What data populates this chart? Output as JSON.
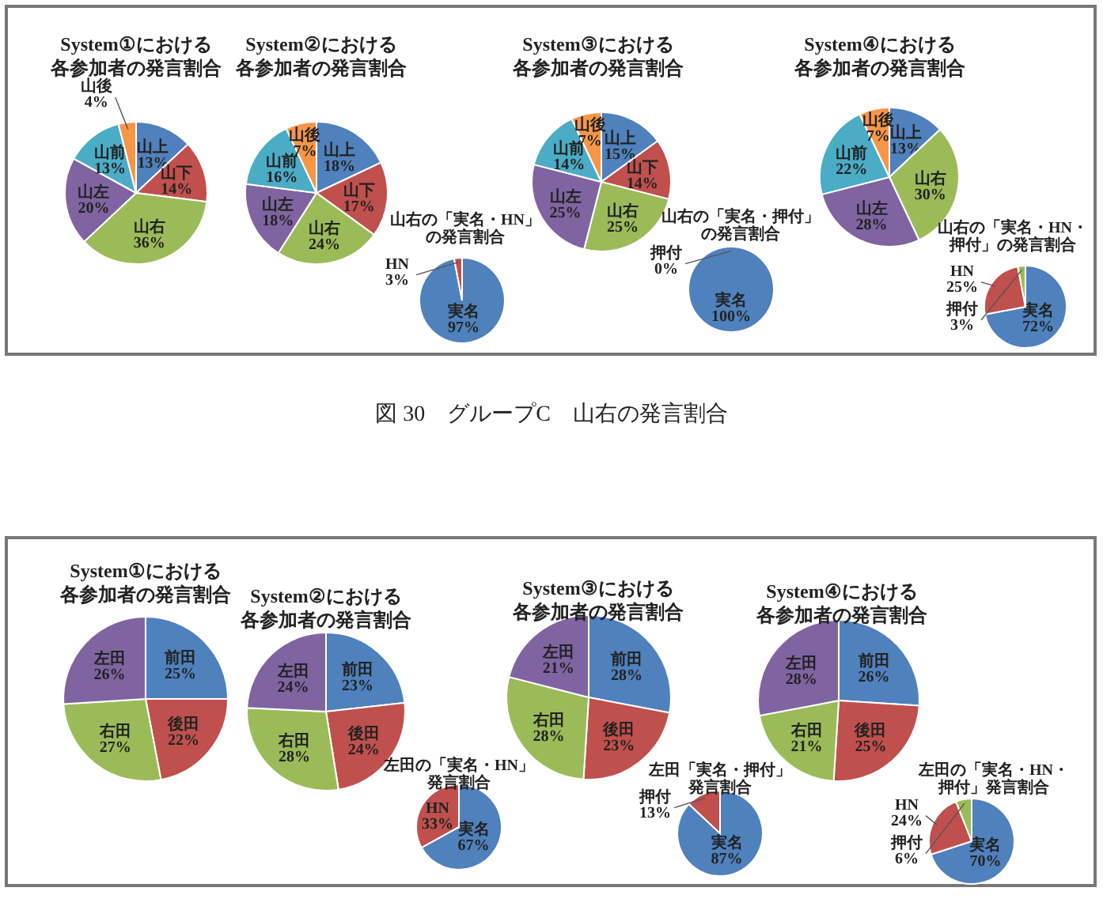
{
  "chart_data": [
    {
      "type": "pie",
      "title": "System①における各参加者の発言割合",
      "categories": [
        "山上",
        "山下",
        "山右",
        "山左",
        "山前",
        "山後"
      ],
      "values": [
        13,
        14,
        36,
        20,
        13,
        4
      ],
      "value_labels": [
        "13%",
        "14%",
        "36%",
        "20%",
        "13%",
        "4%"
      ],
      "colors": [
        "#4f81bd",
        "#c0504d",
        "#9bbb59",
        "#8064a2",
        "#4bacc6",
        "#f79646"
      ],
      "annotations": [
        "図 30　グループC　山右の発言割合"
      ]
    },
    {
      "type": "pie",
      "title": "System②における各参加者の発言割合",
      "categories": [
        "山上",
        "山下",
        "山右",
        "山左",
        "山前",
        "山後"
      ],
      "values": [
        18,
        17,
        24,
        18,
        16,
        7
      ],
      "value_labels": [
        "18%",
        "17%",
        "24%",
        "18%",
        "16%",
        "7%"
      ],
      "colors": [
        "#4f81bd",
        "#c0504d",
        "#9bbb59",
        "#8064a2",
        "#4bacc6",
        "#f79646"
      ]
    },
    {
      "type": "pie",
      "title": "山右の「実名・HN」の発言割合",
      "categories": [
        "実名",
        "HN"
      ],
      "values": [
        97,
        3
      ],
      "value_labels": [
        "97%",
        "3%"
      ],
      "colors": [
        "#4f81bd",
        "#c0504d"
      ]
    },
    {
      "type": "pie",
      "title": "System③における各参加者の発言割合",
      "categories": [
        "山上",
        "山下",
        "山右",
        "山左",
        "山前",
        "山後"
      ],
      "values": [
        15,
        14,
        25,
        25,
        14,
        7
      ],
      "value_labels": [
        "15%",
        "14%",
        "25%",
        "25%",
        "14%",
        "7%"
      ],
      "colors": [
        "#4f81bd",
        "#c0504d",
        "#9bbb59",
        "#8064a2",
        "#4bacc6",
        "#f79646"
      ]
    },
    {
      "type": "pie",
      "title": "山右の「実名・押付」の発言割合",
      "categories": [
        "実名",
        "押付"
      ],
      "values": [
        100,
        0
      ],
      "value_labels": [
        "100%",
        "0%"
      ],
      "colors": [
        "#4f81bd",
        "#c0504d"
      ]
    },
    {
      "type": "pie",
      "title": "System④における各参加者の発言割合",
      "categories": [
        "山上",
        "山右",
        "山左",
        "山前",
        "山後"
      ],
      "values": [
        13,
        30,
        28,
        22,
        7
      ],
      "value_labels": [
        "13%",
        "30%",
        "28%",
        "22%",
        "7%"
      ],
      "colors": [
        "#4f81bd",
        "#9bbb59",
        "#8064a2",
        "#4bacc6",
        "#f79646"
      ]
    },
    {
      "type": "pie",
      "title": "山右の「実名・HN・押付」の発言割合",
      "categories": [
        "実名",
        "HN",
        "押付"
      ],
      "values": [
        72,
        25,
        3
      ],
      "value_labels": [
        "72%",
        "25%",
        "3%"
      ],
      "colors": [
        "#4f81bd",
        "#c0504d",
        "#9bbb59"
      ]
    },
    {
      "type": "pie",
      "title": "System①における各参加者の発言割合",
      "categories": [
        "前田",
        "後田",
        "右田",
        "左田"
      ],
      "values": [
        25,
        22,
        27,
        26
      ],
      "value_labels": [
        "25%",
        "22%",
        "27%",
        "26%"
      ],
      "colors": [
        "#4f81bd",
        "#c0504d",
        "#9bbb59",
        "#8064a2"
      ]
    },
    {
      "type": "pie",
      "title": "System②における各参加者の発言割合",
      "categories": [
        "前田",
        "後田",
        "右田",
        "左田"
      ],
      "values": [
        23,
        24,
        28,
        24
      ],
      "value_labels": [
        "23%",
        "24%",
        "28%",
        "24%"
      ],
      "colors": [
        "#4f81bd",
        "#c0504d",
        "#9bbb59",
        "#8064a2"
      ]
    },
    {
      "type": "pie",
      "title": "左田の「実名・HN」発言割合",
      "categories": [
        "実名",
        "HN"
      ],
      "values": [
        67,
        33
      ],
      "value_labels": [
        "67%",
        "33%"
      ],
      "colors": [
        "#4f81bd",
        "#c0504d"
      ]
    },
    {
      "type": "pie",
      "title": "System③における各参加者の発言割合",
      "categories": [
        "前田",
        "後田",
        "右田",
        "左田"
      ],
      "values": [
        28,
        23,
        28,
        21
      ],
      "value_labels": [
        "28%",
        "23%",
        "28%",
        "21%"
      ],
      "colors": [
        "#4f81bd",
        "#c0504d",
        "#9bbb59",
        "#8064a2"
      ]
    },
    {
      "type": "pie",
      "title": "左田「実名・押付」発言割合",
      "categories": [
        "実名",
        "押付"
      ],
      "values": [
        87,
        13
      ],
      "value_labels": [
        "87%",
        "13%"
      ],
      "colors": [
        "#4f81bd",
        "#c0504d"
      ]
    },
    {
      "type": "pie",
      "title": "System④における各参加者の発言割合",
      "categories": [
        "前田",
        "後田",
        "右田",
        "左田"
      ],
      "values": [
        26,
        25,
        21,
        28
      ],
      "value_labels": [
        "26%",
        "25%",
        "21%",
        "28%"
      ],
      "colors": [
        "#4f81bd",
        "#c0504d",
        "#9bbb59",
        "#8064a2"
      ]
    },
    {
      "type": "pie",
      "title": "左田の「実名・HN・押付」発言割合",
      "categories": [
        "実名",
        "HN",
        "押付"
      ],
      "values": [
        70,
        24,
        6
      ],
      "value_labels": [
        "70%",
        "24%",
        "6%"
      ],
      "colors": [
        "#4f81bd",
        "#c0504d",
        "#9bbb59"
      ]
    }
  ]
}
